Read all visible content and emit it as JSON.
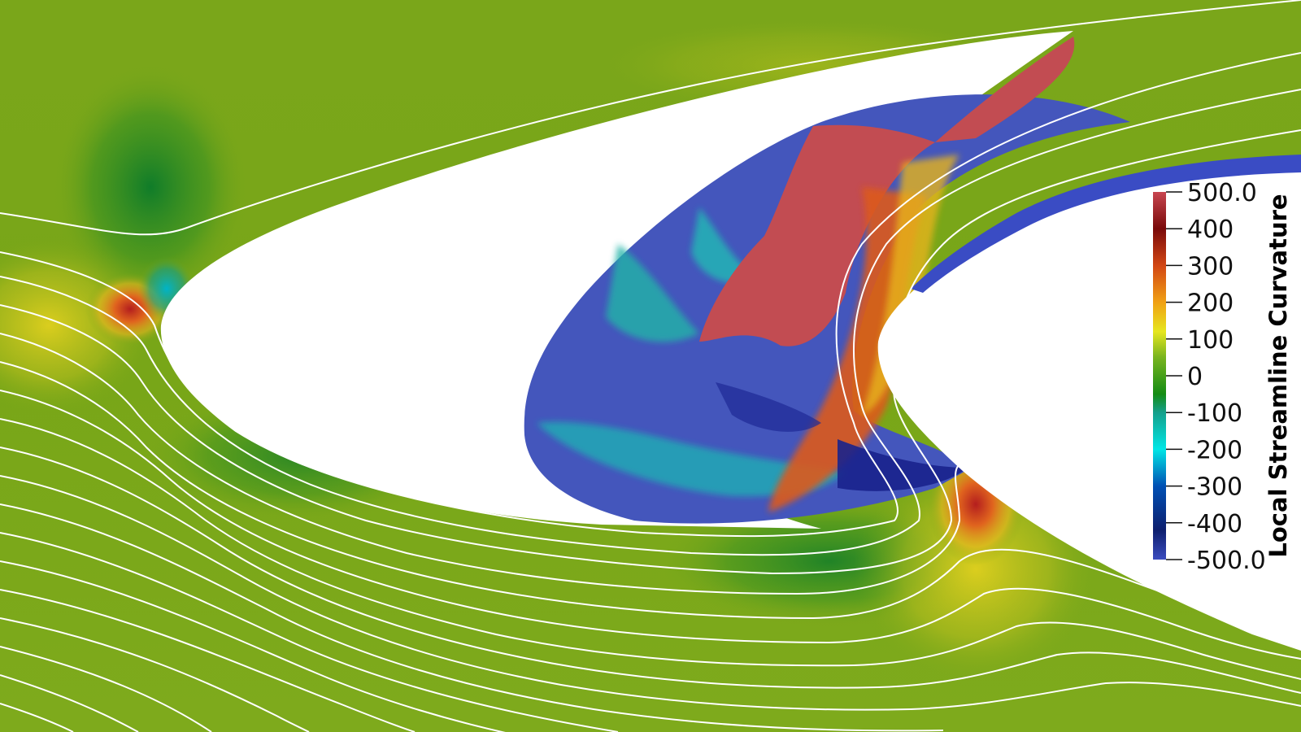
{
  "colorbar": {
    "title": "Local Streamline Curvature",
    "min": -500,
    "max": 500,
    "ticks": [
      {
        "value": 500,
        "label": "500.0"
      },
      {
        "value": 400,
        "label": "400"
      },
      {
        "value": 300,
        "label": "300"
      },
      {
        "value": 200,
        "label": "200"
      },
      {
        "value": 100,
        "label": "100"
      },
      {
        "value": 0,
        "label": "0"
      },
      {
        "value": -100,
        "label": "-100"
      },
      {
        "value": -200,
        "label": "-200"
      },
      {
        "value": -300,
        "label": "-300"
      },
      {
        "value": -400,
        "label": "-400"
      },
      {
        "value": -500,
        "label": "-500.0"
      }
    ],
    "colors": [
      "#3b4cc0",
      "#0d1f6e",
      "#0000b0",
      "#00c8c8",
      "#14a0a0",
      "#12821a",
      "#6fa51c",
      "#e6e61e",
      "#f08c14",
      "#c83214",
      "#7a0a0a",
      "#c84650"
    ]
  },
  "colors": {
    "background": "#ffffff",
    "field": "#78a818",
    "streamline": "#ffffff"
  }
}
